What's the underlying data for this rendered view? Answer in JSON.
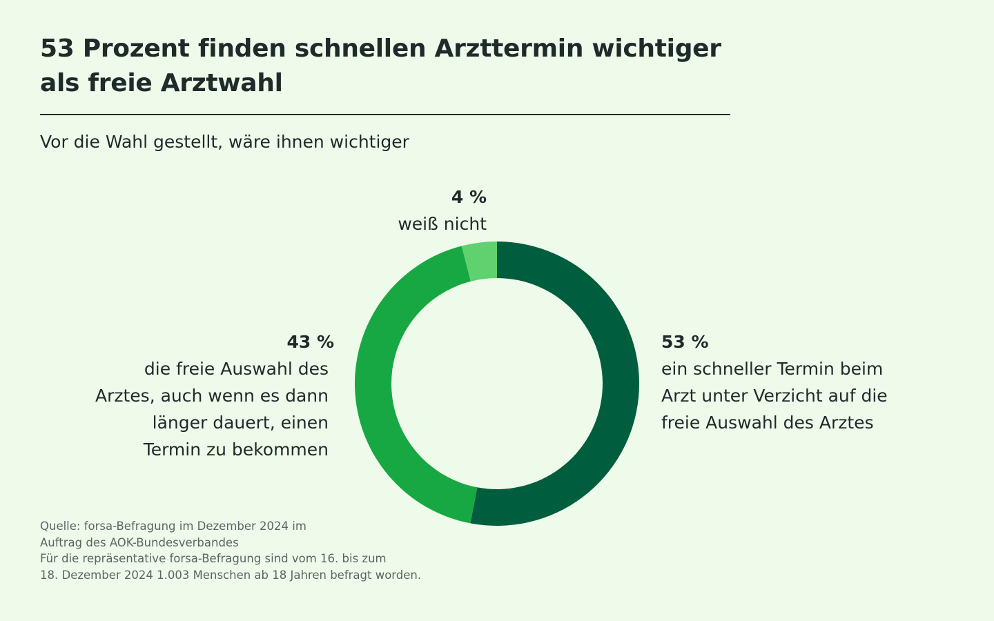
{
  "header": {
    "title_line1": "53 Prozent finden schnellen Arzttermin wichtiger",
    "title_line2": "als freie Arztwahl",
    "subtitle": "Vor die Wahl gestellt, wäre ihnen wichtiger"
  },
  "chart_data": {
    "type": "pie",
    "title": "53 Prozent finden schnellen Arzttermin wichtiger als freie Arztwahl",
    "subtitle": "Vor die Wahl gestellt, wäre ihnen wichtiger",
    "donut": true,
    "unit": "%",
    "slices": [
      {
        "value": 53,
        "value_label": "53 %",
        "label_lines": [
          "ein schneller Termin beim",
          "Arzt unter Verzicht auf die",
          "freie Auswahl des Arztes"
        ],
        "color": "#005e3e"
      },
      {
        "value": 43,
        "value_label": "43 %",
        "label_lines": [
          "die freie Auswahl des",
          "Arztes, auch wenn es dann",
          "länger dauert, einen",
          "Termin zu bekommen"
        ],
        "color": "#18a843"
      },
      {
        "value": 4,
        "value_label": "4 %",
        "label_lines": [
          "weiß nicht"
        ],
        "color": "#5fd16e"
      }
    ]
  },
  "footer": {
    "source_lines": [
      "Quelle: forsa-Befragung im Dezember 2024 im",
      "Auftrag des AOK-Bundesverbandes",
      "Für die repräsentative forsa-Befragung sind vom 16. bis zum",
      "18. Dezember 2024 1.003 Menschen ab 18 Jahren befragt worden."
    ]
  },
  "colors": {
    "background": "#eefaea",
    "text": "#1f2b2a",
    "source_text": "#5b6664"
  }
}
